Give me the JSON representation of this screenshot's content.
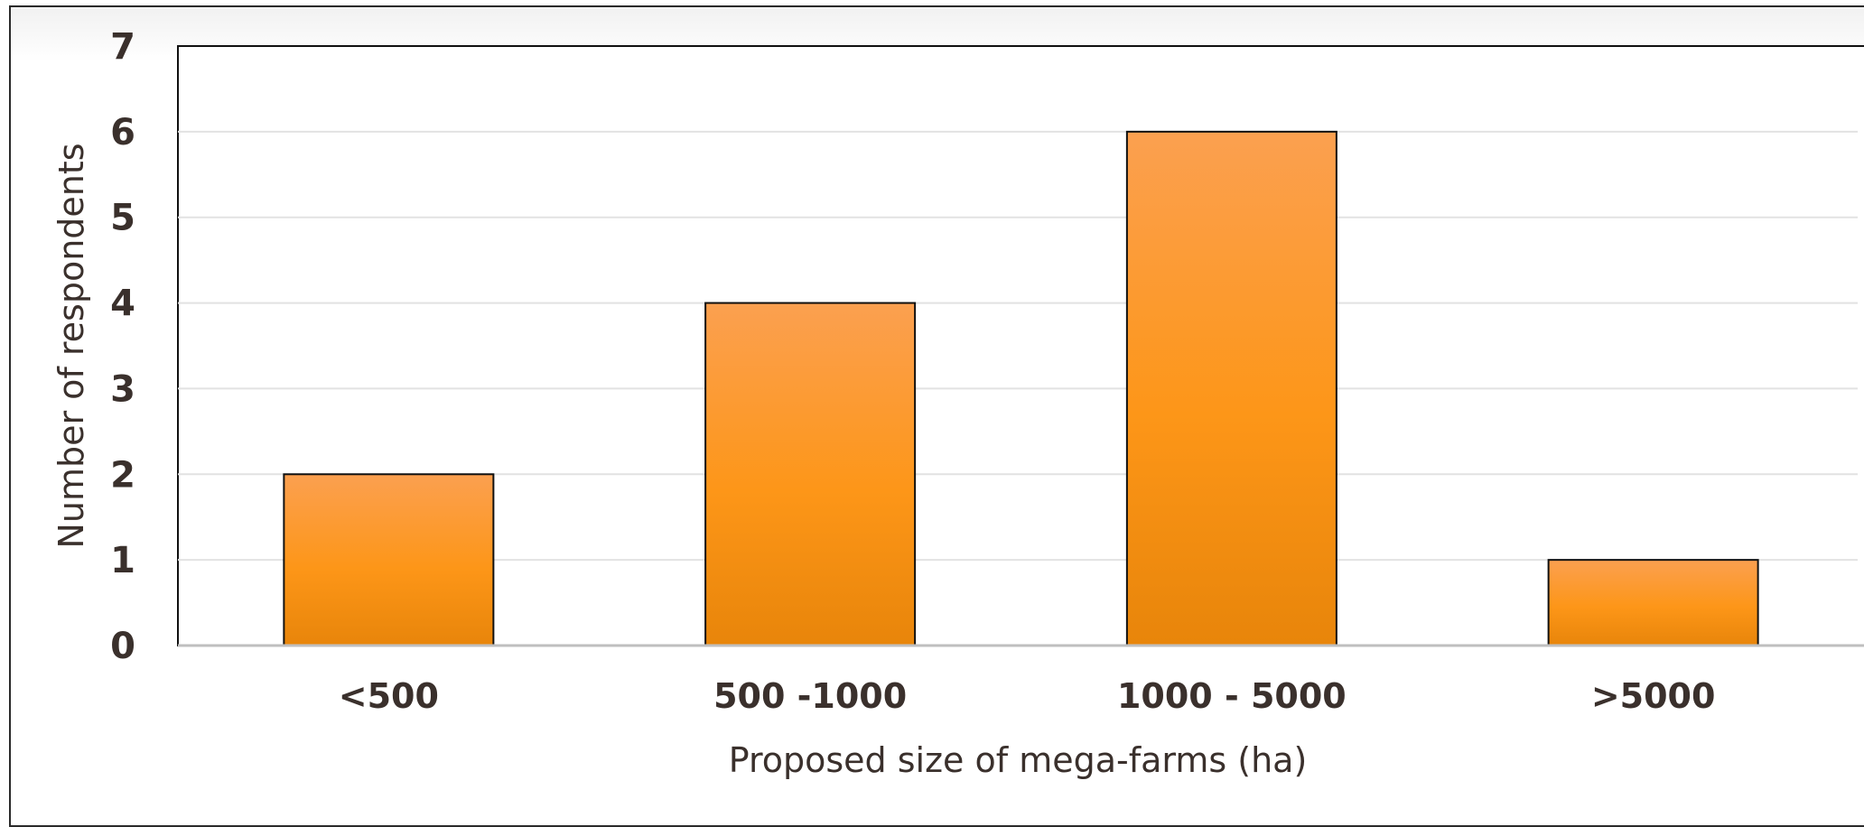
{
  "chart_data": {
    "type": "bar",
    "title": "",
    "xlabel": "Proposed size of mega-farms (ha)",
    "ylabel": "Number of respondents",
    "categories": [
      "<500",
      "500 -1000",
      "1000 - 5000",
      ">5000"
    ],
    "values": [
      2,
      4,
      6,
      1
    ],
    "ylim": [
      0,
      7
    ],
    "yticks": [
      "0",
      "1",
      "2",
      "3",
      "4",
      "5",
      "6",
      "7"
    ],
    "grid": true,
    "legend": "none",
    "colors": {
      "bar_top": "#fba050",
      "bar_mid": "#fd9618",
      "bar_bottom": "#e8850a",
      "bar_outline": "#111111",
      "gridline": "#e2e2e2",
      "text": "#3a302c"
    }
  }
}
